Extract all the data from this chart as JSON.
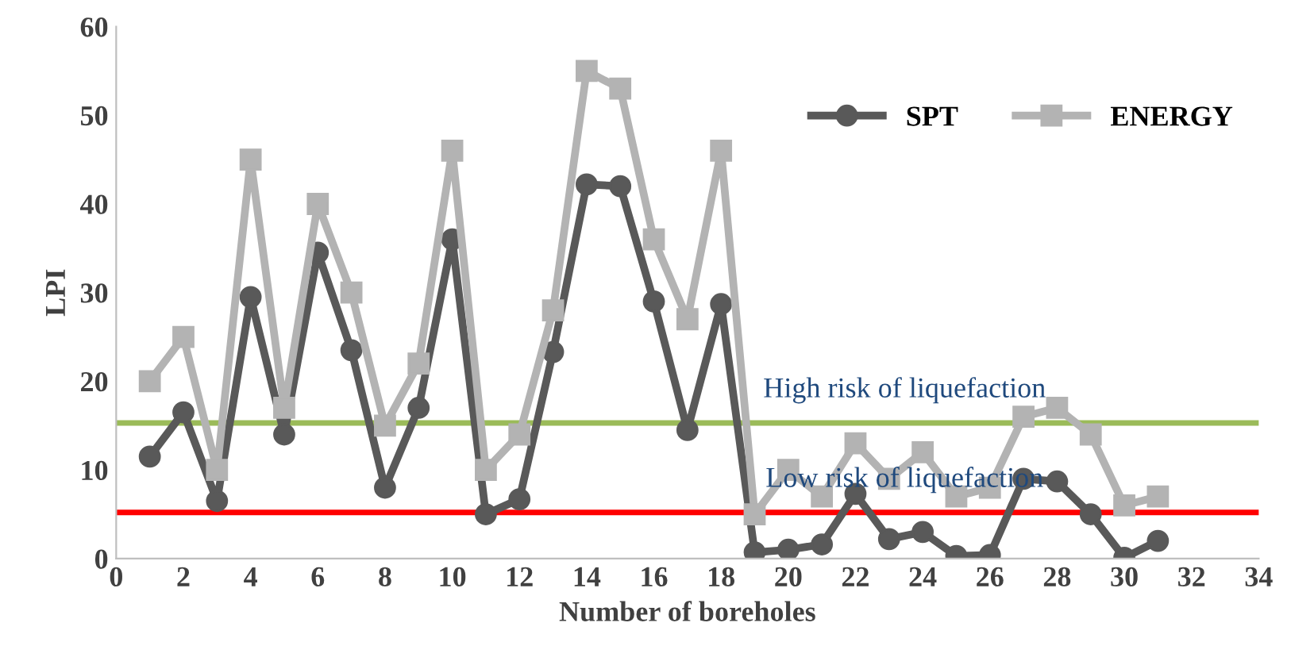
{
  "chart_data": {
    "type": "line",
    "xlabel": "Number of boreholes",
    "ylabel": "LPI",
    "x": [
      1,
      2,
      3,
      4,
      5,
      6,
      7,
      8,
      9,
      10,
      11,
      12,
      13,
      14,
      15,
      16,
      17,
      18,
      19,
      20,
      21,
      22,
      23,
      24,
      25,
      26,
      27,
      28,
      29,
      30,
      31
    ],
    "series": [
      {
        "name": "SPT",
        "color": "#595959",
        "marker": "circle",
        "values": [
          11.5,
          16.5,
          6.5,
          29.5,
          14,
          34.5,
          23.5,
          8,
          17,
          36,
          5,
          6.7,
          23.3,
          42.2,
          42,
          29,
          14.5,
          28.7,
          0.7,
          1,
          1.6,
          7.3,
          2.2,
          3,
          0.3,
          0.4,
          9,
          8.7,
          5,
          0.1,
          2
        ]
      },
      {
        "name": "ENERGY",
        "color": "#b3b3b3",
        "marker": "square",
        "values": [
          20,
          25,
          10,
          45,
          17,
          40,
          30,
          15,
          22,
          46,
          10,
          14,
          28,
          55,
          53,
          36,
          27,
          46,
          5,
          10,
          7,
          13,
          9,
          12,
          7,
          8,
          16,
          17,
          14,
          6,
          7
        ]
      }
    ],
    "xlim": [
      0,
      34
    ],
    "xticks": [
      0,
      2,
      4,
      6,
      8,
      10,
      12,
      14,
      16,
      18,
      20,
      22,
      24,
      26,
      28,
      30,
      32,
      34
    ],
    "ylim": [
      0,
      60
    ],
    "yticks": [
      0,
      10,
      20,
      30,
      40,
      50,
      60
    ],
    "ref_lines": [
      {
        "axis": "y",
        "value": 15.3,
        "label": "High risk of liquefaction",
        "color": "#9bbb59"
      },
      {
        "axis": "y",
        "value": 5.2,
        "label": "Low risk of liquefaction",
        "color": "#ff0000"
      }
    ],
    "grid": false,
    "legend": "top right"
  }
}
